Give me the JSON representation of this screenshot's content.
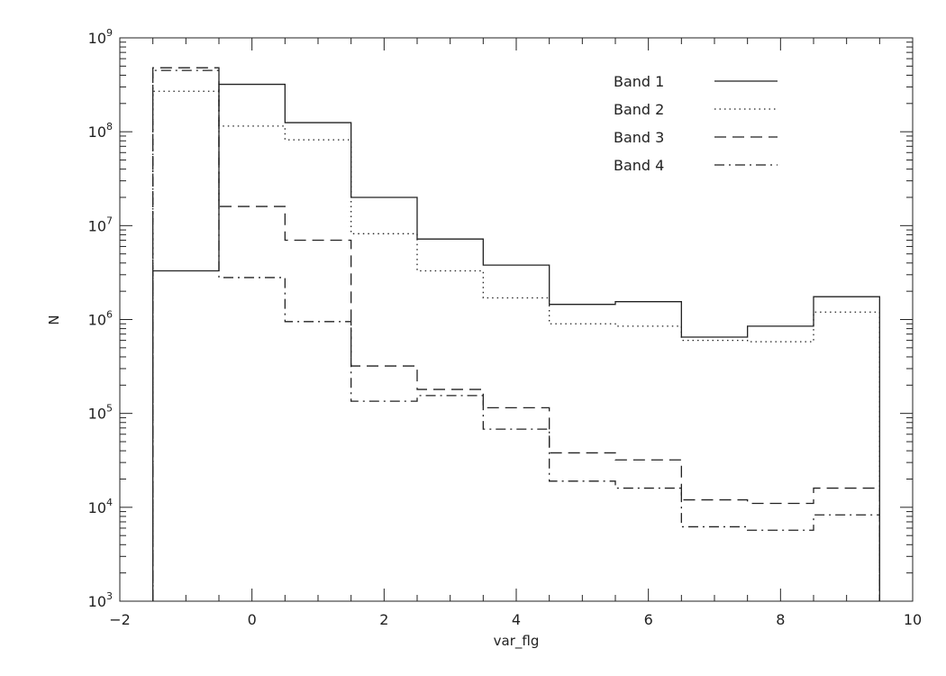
{
  "chart_data": {
    "type": "line",
    "drawstyle": "histogram-steps",
    "xlabel": "var_flg",
    "ylabel": "N",
    "xlim": [
      -2,
      10
    ],
    "ylim": [
      1000,
      1000000000
    ],
    "yscale": "log",
    "xticks": [
      {
        "value": -2,
        "label": "−2"
      },
      {
        "value": 0,
        "label": "0"
      },
      {
        "value": 2,
        "label": "2"
      },
      {
        "value": 4,
        "label": "4"
      },
      {
        "value": 6,
        "label": "6"
      },
      {
        "value": 8,
        "label": "8"
      },
      {
        "value": 10,
        "label": "10"
      }
    ],
    "yticks": [
      {
        "value": 1000,
        "base": "10",
        "exp": "3"
      },
      {
        "value": 10000,
        "base": "10",
        "exp": "4"
      },
      {
        "value": 100000,
        "base": "10",
        "exp": "5"
      },
      {
        "value": 1000000,
        "base": "10",
        "exp": "6"
      },
      {
        "value": 10000000,
        "base": "10",
        "exp": "7"
      },
      {
        "value": 100000000,
        "base": "10",
        "exp": "8"
      },
      {
        "value": 1000000000,
        "base": "10",
        "exp": "9"
      }
    ],
    "grid": false,
    "legend_position": "top-right",
    "x": [
      -1,
      0,
      1,
      2,
      3,
      4,
      5,
      6,
      7,
      8,
      9
    ],
    "series": [
      {
        "name": "Band 1",
        "dash": "solid",
        "values": [
          3300000,
          320000000,
          125000000,
          20000000,
          7200000,
          3800000,
          1450000,
          1550000,
          650000,
          850000,
          1750000
        ]
      },
      {
        "name": "Band 2",
        "dash": "dotted",
        "values": [
          270000000,
          115000000,
          82000000,
          8200000,
          3300000,
          1700000,
          900000,
          850000,
          600000,
          580000,
          1200000
        ]
      },
      {
        "name": "Band 3",
        "dash": "dashed",
        "values": [
          480000000,
          16000000,
          7000000,
          320000,
          180000,
          115000,
          38000,
          32000,
          12000,
          11000,
          16000
        ]
      },
      {
        "name": "Band 4",
        "dash": "dashdot",
        "values": [
          450000000,
          2800000,
          950000,
          135000,
          155000,
          68000,
          19000,
          16000,
          6200,
          5700,
          8300
        ]
      }
    ]
  }
}
